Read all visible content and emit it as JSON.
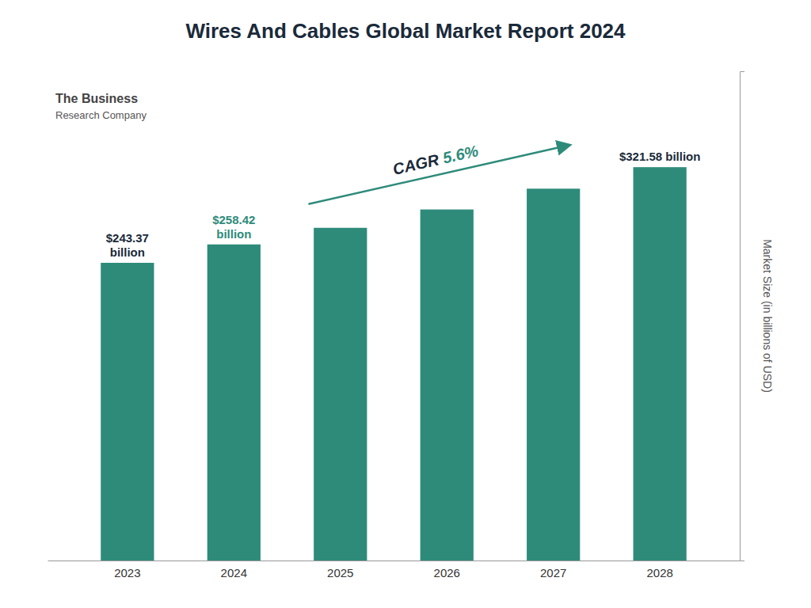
{
  "chart_data": {
    "type": "bar",
    "title": "Wires And Cables Global Market Report 2024",
    "categories": [
      "2023",
      "2024",
      "2025",
      "2026",
      "2027",
      "2028"
    ],
    "values": [
      243.37,
      258.42,
      272.0,
      287.0,
      304.0,
      321.58
    ],
    "color": "#2e8b7a",
    "y_label": "Market Size (in billions of USD)",
    "ylim": [
      0,
      400
    ],
    "yticks": [],
    "grid": false,
    "tick_labels": "x",
    "annotations": [
      {
        "category": "2023",
        "lines": [
          "$243.37",
          "billion"
        ],
        "color": "#1a2a3a"
      },
      {
        "category": "2024",
        "lines": [
          "$258.42",
          "billion"
        ],
        "color": "#2e8b7a"
      },
      {
        "category": "2028",
        "lines": [
          "$321.58 billion"
        ],
        "color": "#1a2a3a"
      },
      {
        "type": "arrow",
        "color": "#2e8b7a",
        "parts": [
          {
            "text": "CAGR ",
            "color": "#1a2a3a"
          },
          {
            "text": "5.6%",
            "color": "#2e8b7a"
          }
        ]
      },
      {
        "lines": [
          "The Business",
          "Research Company"
        ]
      }
    ]
  }
}
